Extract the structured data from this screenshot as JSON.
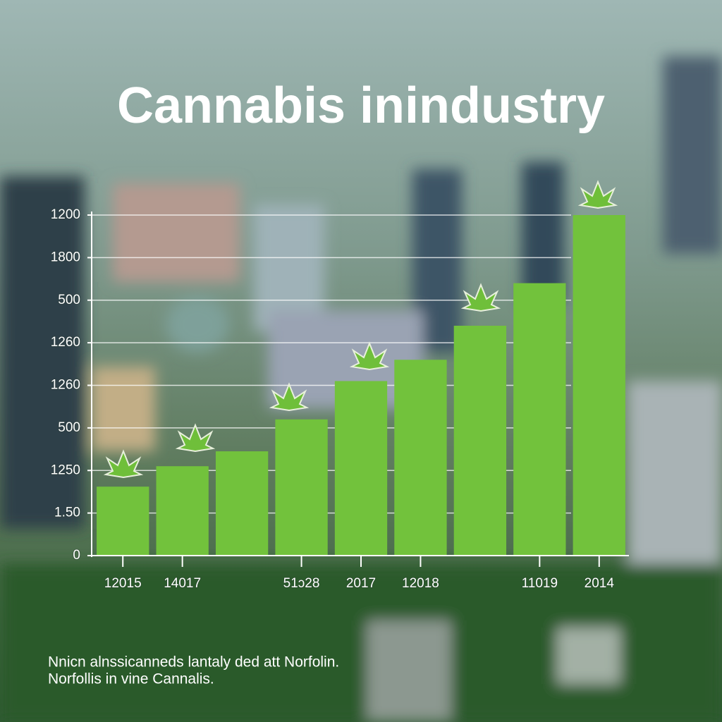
{
  "chart_data": {
    "type": "bar",
    "title": "Cannabis inindustry",
    "categories": [
      "12015",
      "14017",
      null,
      "51ɔ28",
      "2017",
      "12018",
      null,
      "11019",
      "2014"
    ],
    "values": [
      1.62,
      2.1,
      2.45,
      3.2,
      4.1,
      4.6,
      5.4,
      6.4,
      8.0
    ],
    "color": "#72c23c",
    "ylim": [
      0,
      8
    ],
    "yticks": [
      0,
      {
        "value": 1,
        "label": "1.50"
      },
      {
        "value": 2,
        "label": "1250"
      },
      {
        "value": 3,
        "label": "500"
      },
      {
        "value": 4,
        "label": "1260"
      },
      {
        "value": 5,
        "label": "1260"
      },
      {
        "value": 6,
        "label": "500"
      },
      {
        "value": 7,
        "label": "1800"
      },
      {
        "value": 8,
        "label": "1200"
      }
    ],
    "grid": true,
    "footnote": [
      "Nnicn alnssicanneds lantaly ded att Norfolin.",
      "Norfollis in vine Cannalis."
    ]
  }
}
